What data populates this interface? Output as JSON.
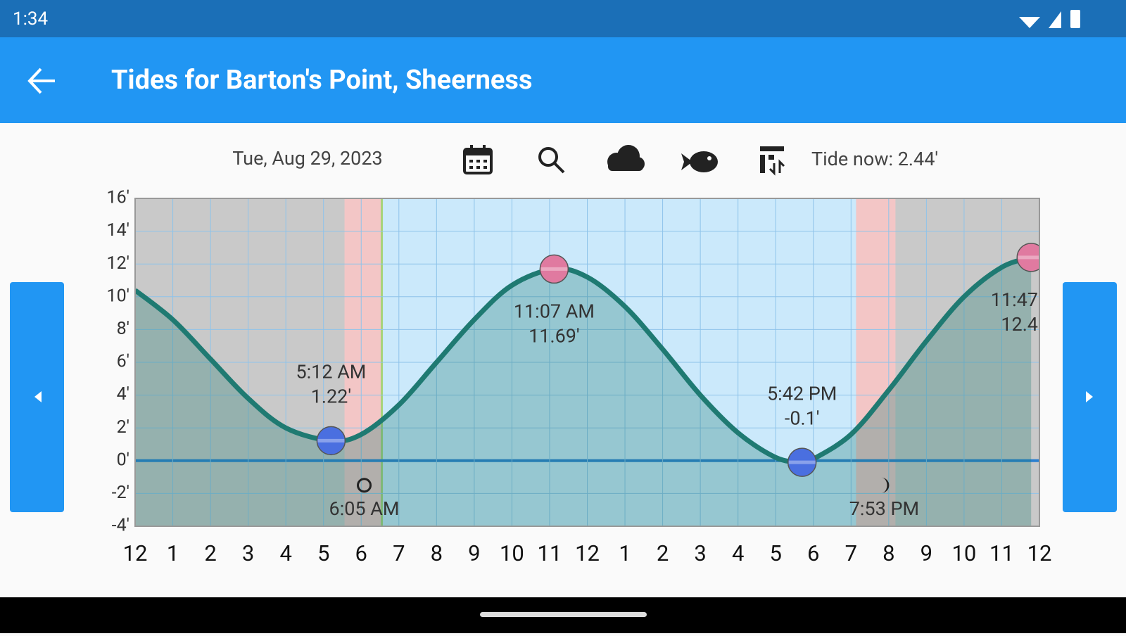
{
  "status_bar": {
    "time": "1:34"
  },
  "app_bar": {
    "title": "Tides for Barton's Point, Sheerness"
  },
  "toolbar": {
    "date": "Tue, Aug 29, 2023",
    "tide_now": "Tide now: 2.44'"
  },
  "chart_data": {
    "type": "line",
    "x": [
      0,
      1,
      2,
      3,
      4,
      5.2,
      6,
      7,
      8,
      9,
      10,
      11.12,
      12,
      13,
      14,
      15,
      16,
      17,
      17.7,
      18,
      19,
      20,
      21,
      22,
      23,
      23.78
    ],
    "series": [
      {
        "color": "#1f7a72",
        "values": [
          10.4,
          8.6,
          6.2,
          3.8,
          2.0,
          1.22,
          1.6,
          3.4,
          6.0,
          8.6,
          10.7,
          11.69,
          11.2,
          9.4,
          6.8,
          4.0,
          1.7,
          0.2,
          -0.1,
          0.1,
          1.6,
          4.3,
          7.3,
          10.0,
          11.8,
          12.4
        ]
      }
    ],
    "xlim": [
      0,
      24
    ],
    "ylim": [
      -4,
      16
    ],
    "yticks": [
      {
        "value": -4,
        "label": "-4'"
      },
      {
        "value": -2,
        "label": "-2'"
      },
      {
        "value": 0,
        "label": "0'"
      },
      {
        "value": 2,
        "label": "2'"
      },
      {
        "value": 4,
        "label": "4'"
      },
      {
        "value": 6,
        "label": "6'"
      },
      {
        "value": 8,
        "label": "8'"
      },
      {
        "value": 10,
        "label": "10'"
      },
      {
        "value": 12,
        "label": "12'"
      },
      {
        "value": 14,
        "label": "14'"
      },
      {
        "value": 16,
        "label": "16'"
      }
    ],
    "xticks": [
      {
        "value": 0,
        "label": "12"
      },
      1,
      2,
      3,
      4,
      5,
      6,
      7,
      8,
      9,
      10,
      11,
      12,
      {
        "value": 13,
        "label": "1"
      },
      {
        "value": 14,
        "label": "2"
      },
      {
        "value": 15,
        "label": "3"
      },
      {
        "value": 16,
        "label": "4"
      },
      {
        "value": 17,
        "label": "5"
      },
      {
        "value": 18,
        "label": "6"
      },
      {
        "value": 19,
        "label": "7"
      },
      {
        "value": 20,
        "label": "8"
      },
      {
        "value": 21,
        "label": "9"
      },
      {
        "value": 22,
        "label": "10"
      },
      {
        "value": 23,
        "label": "11"
      },
      {
        "value": 24,
        "label": "12"
      }
    ],
    "grid": true,
    "extremes": [
      {
        "kind": "low",
        "x": 5.2,
        "time": "5:12 AM",
        "value": 1.22,
        "value_label": "1.22'",
        "color": "#4a6fe0"
      },
      {
        "kind": "high",
        "x": 11.12,
        "time": "11:07 AM",
        "value": 11.69,
        "value_label": "11.69'",
        "color": "#e07aa0"
      },
      {
        "kind": "low",
        "x": 17.7,
        "time": "5:42 PM",
        "value": -0.1,
        "value_label": "-0.1'",
        "color": "#4a6fe0"
      },
      {
        "kind": "high",
        "x": 23.78,
        "time": "11:47",
        "value": 12.4,
        "value_label": "12.4",
        "color": "#e07aa0"
      }
    ],
    "sunrise": {
      "x": 6.08,
      "label": "6:05 AM"
    },
    "sunset": {
      "x": 19.88,
      "label": "7:53 PM"
    }
  }
}
